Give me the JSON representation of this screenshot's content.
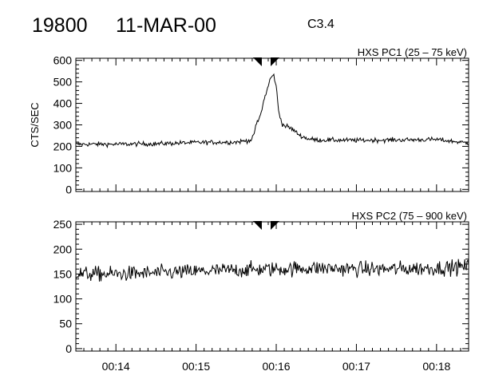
{
  "header": {
    "event_id": "19800",
    "date": "11-MAR-00",
    "goes_class": "C3.4"
  },
  "chart_data": [
    {
      "type": "line",
      "title": "HXS PC1 (25 – 75 keV)",
      "ylabel": "CTS/SEC",
      "xlabel": "",
      "xlim_minutes": [
        13.5,
        18.4
      ],
      "ylim": [
        -10,
        610
      ],
      "yticks": [
        "0",
        "100",
        "200",
        "300",
        "400",
        "500",
        "600"
      ],
      "xticks": [
        "00:14",
        "00:15",
        "00:16",
        "00:17",
        "00:18"
      ],
      "markers_minutes": [
        15.77,
        15.98
      ],
      "series": [
        {
          "minutes": [
            13.5,
            14.0,
            14.5,
            15.0,
            15.5,
            15.7,
            15.75,
            15.8,
            15.85,
            15.9,
            15.93,
            15.97,
            16.0,
            16.03,
            16.08,
            16.15,
            16.2,
            16.3,
            16.4,
            16.5,
            17.0,
            17.5,
            18.0,
            18.4
          ],
          "values": [
            210,
            210,
            212,
            218,
            220,
            230,
            300,
            340,
            420,
            480,
            520,
            530,
            480,
            360,
            300,
            290,
            280,
            250,
            235,
            230,
            228,
            230,
            232,
            215
          ]
        }
      ]
    },
    {
      "type": "line",
      "title": "HXS PC2 (75 – 900 keV)",
      "ylabel": "",
      "xlabel": "",
      "xlim_minutes": [
        13.5,
        18.4
      ],
      "ylim": [
        -5,
        255
      ],
      "yticks": [
        "0",
        "50",
        "100",
        "150",
        "200",
        "250"
      ],
      "xticks": [
        "00:14",
        "00:15",
        "00:16",
        "00:17",
        "00:18"
      ],
      "markers_minutes": [
        15.77,
        15.98
      ],
      "series": [
        {
          "minutes": [
            13.5,
            14.0,
            14.5,
            15.0,
            15.5,
            16.0,
            16.5,
            17.0,
            17.5,
            18.0,
            18.4
          ],
          "values": [
            150,
            150,
            152,
            155,
            158,
            160,
            162,
            160,
            160,
            162,
            165
          ]
        }
      ]
    }
  ]
}
